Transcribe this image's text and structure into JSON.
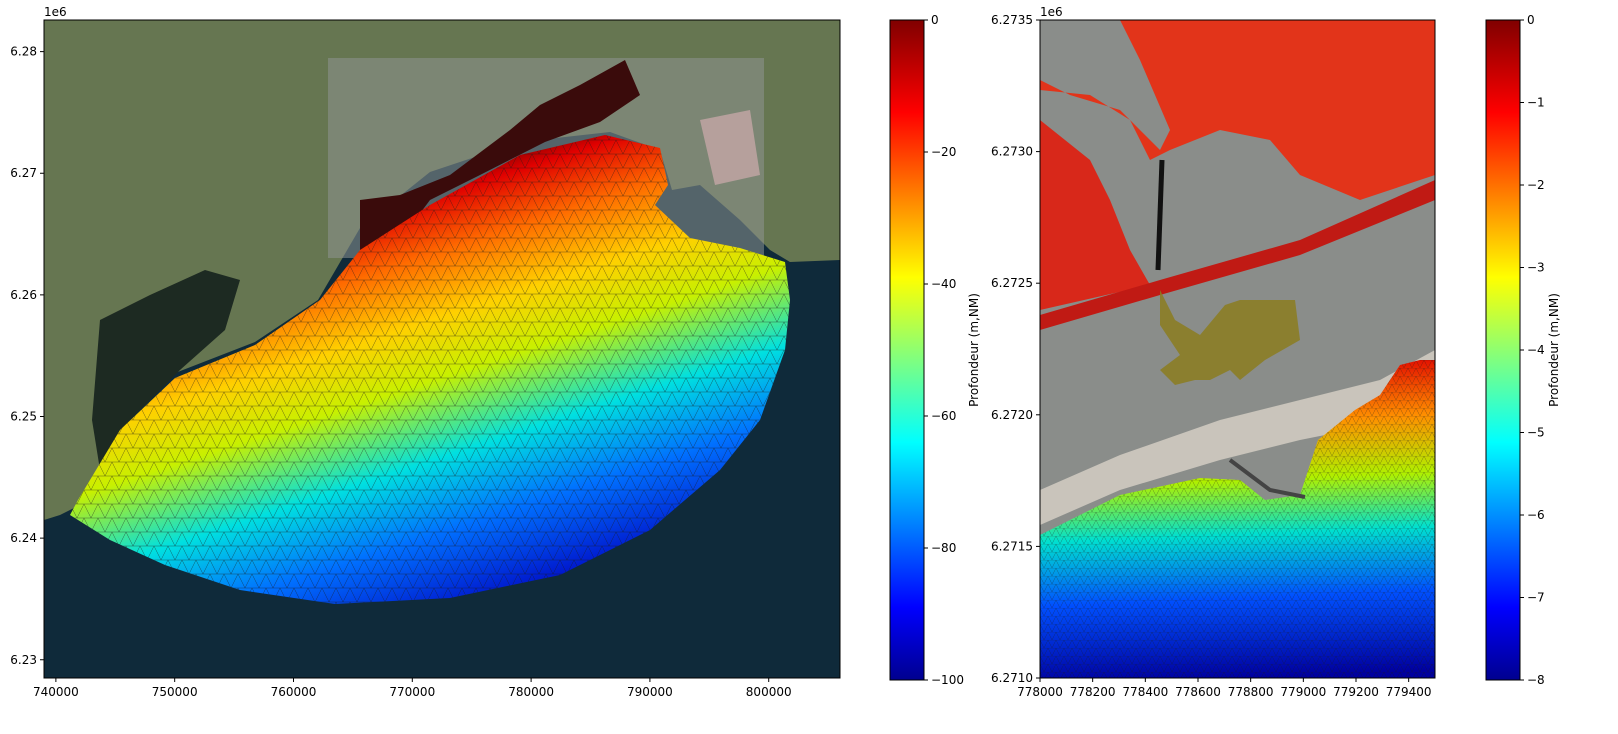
{
  "left_map": {
    "offset_label": "1e6",
    "x_ticks": [
      "740000",
      "750000",
      "760000",
      "770000",
      "780000",
      "790000",
      "800000"
    ],
    "y_ticks": [
      "6.23",
      "6.24",
      "6.25",
      "6.26",
      "6.27",
      "6.28"
    ],
    "x_range": [
      739000,
      806000
    ],
    "y_range": [
      6.2285,
      6.2826
    ]
  },
  "left_colorbar": {
    "label": "Profondeur (m,NM)",
    "ticks": [
      "0",
      "−20",
      "−40",
      "−60",
      "−80",
      "−100"
    ],
    "range": [
      -100,
      0
    ],
    "colormap": "jet"
  },
  "right_map": {
    "offset_label": "1e6",
    "x_ticks": [
      "778000",
      "778200",
      "778400",
      "778600",
      "778800",
      "779000",
      "779200",
      "779400"
    ],
    "y_ticks": [
      "6.2710",
      "6.2715",
      "6.2720",
      "6.2725",
      "6.2730",
      "6.2735"
    ],
    "x_range": [
      778000,
      779500
    ],
    "y_range": [
      6.271,
      6.2735
    ]
  },
  "right_colorbar": {
    "label": "Profondeur (m,NM)",
    "ticks": [
      "0",
      "−1",
      "−2",
      "−3",
      "−4",
      "−5",
      "−6",
      "−7",
      "−8"
    ],
    "range": [
      -8,
      0
    ],
    "colormap": "jet"
  },
  "colors": {
    "sea": "#0f2a3a",
    "land": "#5f6e4a",
    "lagoon": "#1f2a24",
    "urban": "#8a8f8e",
    "mesh_line": "#1a1a1a"
  }
}
